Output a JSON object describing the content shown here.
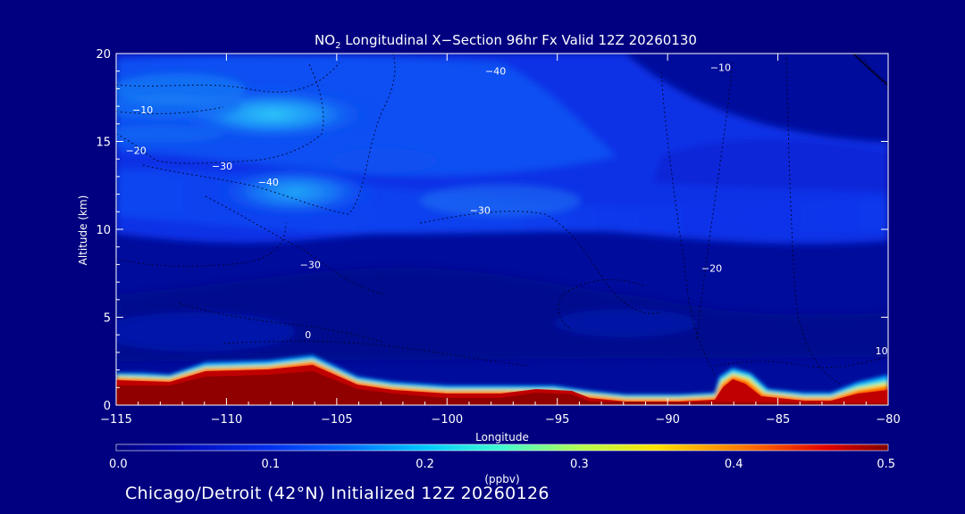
{
  "chart_data": {
    "type": "heatmap",
    "title": {
      "prefix": "NO",
      "sub": "2",
      "rest": " Longitudinal X−Section 96hr  Fx Valid 12Z 20260130"
    },
    "xlabel": "Longitude",
    "ylabel": "Altitude (km)",
    "xlim": [
      -115,
      -80
    ],
    "ylim": [
      0,
      20
    ],
    "x_ticks": [
      {
        "value": -115,
        "label": "−115"
      },
      {
        "value": -110,
        "label": "−110"
      },
      {
        "value": -105,
        "label": "−105"
      },
      {
        "value": -100,
        "label": "−100"
      },
      {
        "value": -95,
        "label": "−95"
      },
      {
        "value": -90,
        "label": "−90"
      },
      {
        "value": -85,
        "label": "−85"
      },
      {
        "value": -80,
        "label": "−80"
      }
    ],
    "y_ticks": [
      {
        "value": 0,
        "label": "0"
      },
      {
        "value": 5,
        "label": "5"
      },
      {
        "value": 10,
        "label": "10"
      },
      {
        "value": 15,
        "label": "15"
      },
      {
        "value": 20,
        "label": "20"
      }
    ],
    "colorbar": {
      "label": "(ppbv)",
      "ticks": [
        {
          "value": 0.0,
          "label": "0.0"
        },
        {
          "value": 0.1,
          "label": "0.1"
        },
        {
          "value": 0.2,
          "label": "0.2"
        },
        {
          "value": 0.3,
          "label": "0.3"
        },
        {
          "value": 0.4,
          "label": "0.4"
        },
        {
          "value": 0.5,
          "label": "0.5"
        }
      ],
      "range": [
        0,
        0.5
      ]
    },
    "contour_labels": [
      {
        "text": "−10",
        "lon": -113.8,
        "alt": 16.6
      },
      {
        "text": "−20",
        "lon": -114.1,
        "alt": 14.3
      },
      {
        "text": "−30",
        "lon": -110.2,
        "alt": 13.4
      },
      {
        "text": "−40",
        "lon": -108.1,
        "alt": 12.5
      },
      {
        "text": "−30",
        "lon": -98.5,
        "alt": 10.9
      },
      {
        "text": "−40",
        "lon": -97.8,
        "alt": 18.8
      },
      {
        "text": "−10",
        "lon": -87.6,
        "alt": 19.0
      },
      {
        "text": "−30",
        "lon": -106.2,
        "alt": 7.8
      },
      {
        "text": "−20",
        "lon": -88.0,
        "alt": 7.6
      },
      {
        "text": "0",
        "lon": -106.3,
        "alt": 3.8
      },
      {
        "text": "10",
        "lon": -80.3,
        "alt": 2.9
      }
    ],
    "grid": false,
    "colormap": "blue-cyan-yellow-red"
  },
  "footer": "Chicago/Detroit (42°N) Initialized 12Z 20260126"
}
